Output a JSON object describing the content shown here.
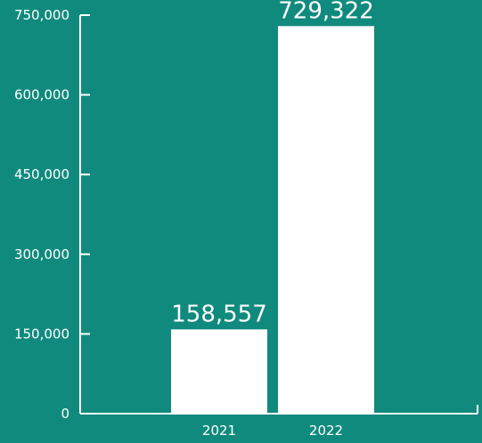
{
  "chart_data": {
    "type": "bar",
    "categories": [
      "2021",
      "2022"
    ],
    "values": [
      158557,
      729322
    ],
    "data_labels": [
      "158,557",
      "729,322"
    ],
    "title": "",
    "xlabel": "",
    "ylabel": "",
    "ylim": [
      0,
      750000
    ],
    "yticks": [
      0,
      150000,
      300000,
      450000,
      600000,
      750000
    ],
    "ytick_labels": [
      "0",
      "150,000",
      "300,000",
      "450,000",
      "600,000",
      "750,000"
    ],
    "grid": false,
    "legend": "none",
    "colors": {
      "background": "#118a7e",
      "bar": "#ffffff",
      "axis": "#ffffff",
      "text": "#ffffff"
    }
  }
}
